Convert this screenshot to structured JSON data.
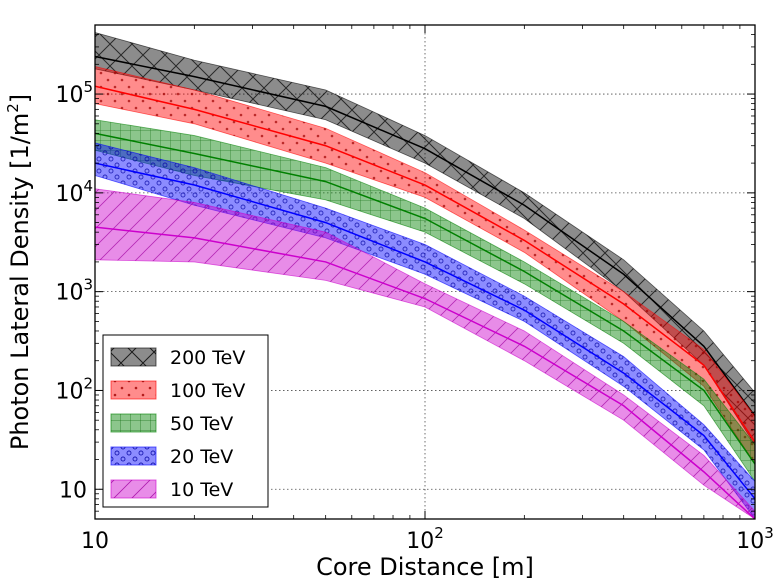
{
  "chart_data": {
    "type": "area",
    "title": "",
    "xlabel": "Core Distance [m]",
    "ylabel_main": "Photon Lateral Density [1/m",
    "ylabel_sup": "2",
    "ylabel_tail": "]",
    "x_scale": "log",
    "y_scale": "log",
    "xlim": [
      10,
      1000
    ],
    "ylim": [
      5,
      500000
    ],
    "grid": true,
    "legend_position": "lower-left",
    "x_ticks": [
      {
        "value": 10,
        "base": "10",
        "exp": ""
      },
      {
        "value": 100,
        "base": "10",
        "exp": "2"
      },
      {
        "value": 1000,
        "base": "10",
        "exp": "3"
      }
    ],
    "y_ticks": [
      {
        "value": 10,
        "base": "10",
        "exp": ""
      },
      {
        "value": 100,
        "base": "10",
        "exp": "2"
      },
      {
        "value": 1000,
        "base": "10",
        "exp": "3"
      },
      {
        "value": 10000,
        "base": "10",
        "exp": "4"
      },
      {
        "value": 100000,
        "base": "10",
        "exp": "5"
      }
    ],
    "x": [
      10,
      20,
      50,
      100,
      200,
      400,
      700,
      1000
    ],
    "series": [
      {
        "name": "200 TeV",
        "color": "#000000",
        "hatch": "x",
        "center": [
          240000,
          150000,
          75000,
          28000,
          7500,
          1500,
          280,
          55
        ],
        "lower": [
          180000,
          110000,
          55000,
          20000,
          5500,
          1000,
          180,
          28
        ],
        "upper": [
          420000,
          220000,
          110000,
          38000,
          10000,
          2100,
          400,
          95
        ]
      },
      {
        "name": "100 TeV",
        "color": "#ff0000",
        "hatch": "dots",
        "center": [
          120000,
          70000,
          30000,
          12000,
          3300,
          750,
          180,
          30
        ],
        "lower": [
          80000,
          50000,
          20000,
          9000,
          2500,
          500,
          110,
          18
        ],
        "upper": [
          190000,
          110000,
          45000,
          16000,
          4200,
          1000,
          260,
          55
        ]
      },
      {
        "name": "50 TeV",
        "color": "#008000",
        "hatch": "grid",
        "center": [
          40000,
          25000,
          13000,
          5500,
          1600,
          400,
          100,
          18
        ],
        "lower": [
          27000,
          15000,
          8500,
          4000,
          1200,
          300,
          70,
          12
        ],
        "upper": [
          55000,
          38000,
          18000,
          7000,
          2000,
          500,
          130,
          28
        ]
      },
      {
        "name": "20 TeV",
        "color": "#0000ff",
        "hatch": "circles",
        "center": [
          20000,
          12000,
          5000,
          2000,
          650,
          150,
          35,
          8
        ],
        "lower": [
          15000,
          7500,
          3500,
          1500,
          500,
          110,
          25,
          5
        ],
        "upper": [
          32000,
          18000,
          7000,
          3000,
          900,
          220,
          45,
          12
        ]
      },
      {
        "name": "10 TeV",
        "color": "#cc00cc",
        "hatch": "diagonal",
        "center": [
          4500,
          3500,
          2000,
          850,
          280,
          70,
          15,
          5
        ],
        "lower": [
          2100,
          2000,
          1300,
          700,
          200,
          50,
          11,
          5
        ],
        "upper": [
          11000,
          8000,
          4000,
          1200,
          400,
          90,
          22,
          6
        ]
      }
    ]
  }
}
